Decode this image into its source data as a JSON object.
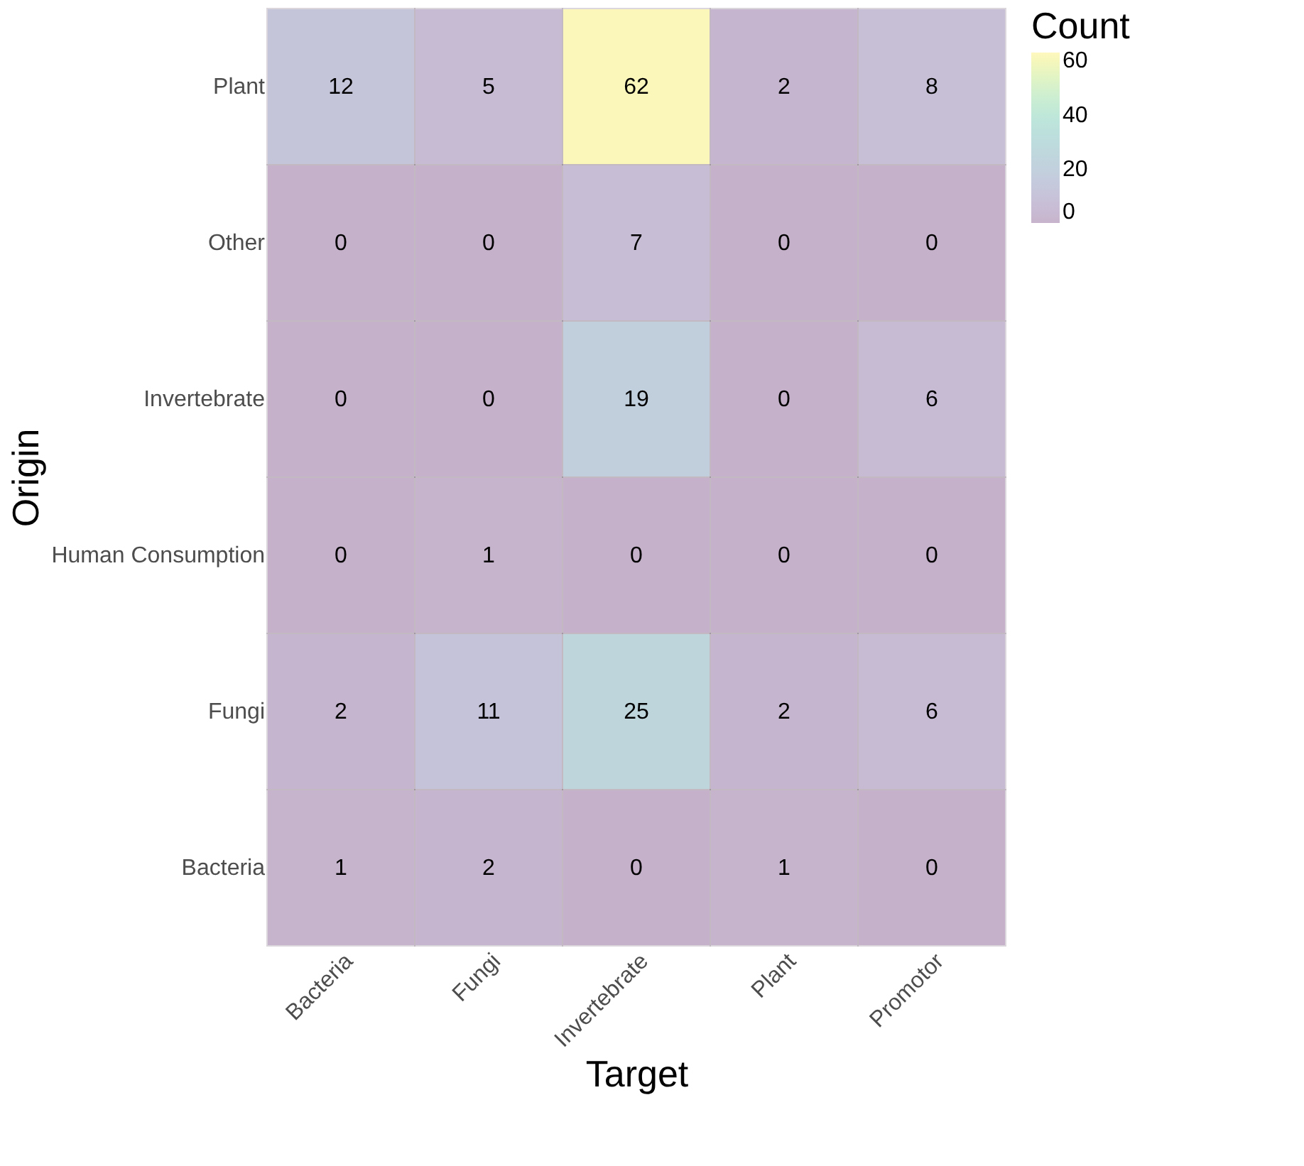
{
  "chart_data": {
    "type": "heatmap",
    "xlabel": "Target",
    "ylabel": "Origin",
    "legend_title": "Count",
    "categories": [
      "Bacteria",
      "Fungi",
      "Invertebrate",
      "Plant",
      "Promotor"
    ],
    "y_categories": [
      "Plant",
      "Other",
      "Invertebrate",
      "Human Consumption",
      "Fungi",
      "Bacteria"
    ],
    "cells": [
      [
        12,
        5,
        62,
        2,
        8
      ],
      [
        0,
        0,
        7,
        0,
        0
      ],
      [
        0,
        0,
        19,
        0,
        6
      ],
      [
        0,
        1,
        0,
        0,
        0
      ],
      [
        2,
        11,
        25,
        2,
        6
      ],
      [
        1,
        2,
        0,
        1,
        0
      ]
    ],
    "clim": [
      0,
      63
    ],
    "cticks": [
      0,
      20,
      40,
      60
    ],
    "data_labels": true,
    "grid": false
  }
}
